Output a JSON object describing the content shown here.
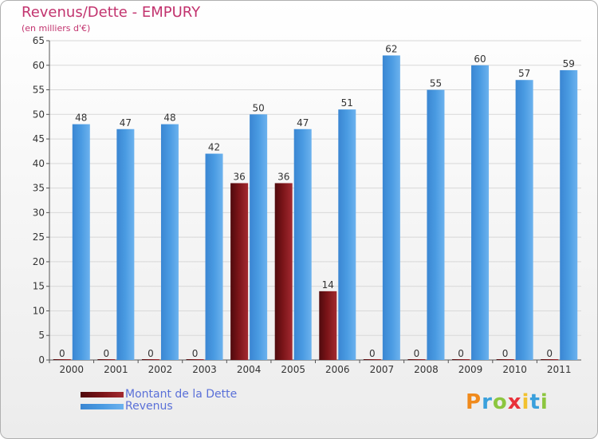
{
  "header": {
    "title": "Revenus/Dette - EMPURY",
    "subtitle": "(en milliers d'€)"
  },
  "logo": {
    "text": "Proxiti"
  },
  "colors": {
    "dette": "#7a1418",
    "revenus": "#4a9be2",
    "label": "#333333",
    "axis": "#555555",
    "grid": "#d8d8d8"
  },
  "chart_data": {
    "type": "bar",
    "title": "Revenus/Dette - EMPURY",
    "subtitle": "(en milliers d'€)",
    "xlabel": "",
    "ylabel": "",
    "categories": [
      "2000",
      "2001",
      "2002",
      "2003",
      "2004",
      "2005",
      "2006",
      "2007",
      "2008",
      "2009",
      "2010",
      "2011"
    ],
    "series": [
      {
        "name": "Montant de la Dette",
        "color": "#7a1418",
        "values": [
          0,
          0,
          0,
          0,
          36,
          36,
          14,
          0,
          0,
          0,
          0,
          0
        ]
      },
      {
        "name": "Revenus",
        "color": "#4a9be2",
        "values": [
          48,
          47,
          48,
          42,
          50,
          47,
          51,
          62,
          55,
          60,
          57,
          59
        ]
      }
    ],
    "ylim": [
      0,
      65
    ],
    "yticks": [
      0,
      5,
      10,
      15,
      20,
      25,
      30,
      35,
      40,
      45,
      50,
      55,
      60,
      65
    ],
    "grid": true,
    "legend": "bottom-left"
  }
}
